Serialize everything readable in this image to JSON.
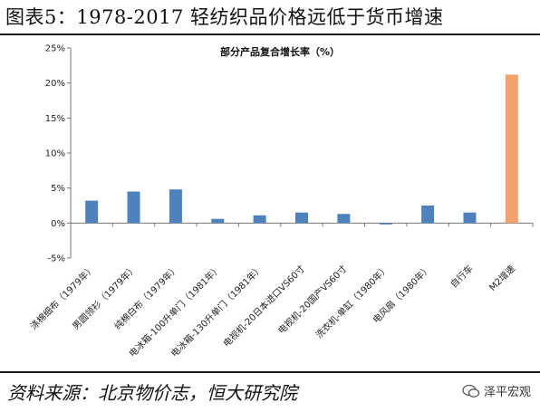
{
  "header": {
    "title": "图表5：1978-2017 轻纺织品价格远低于货币增速"
  },
  "source": {
    "text": "资料来源：北京物价志，恒大研究院"
  },
  "watermark": {
    "text": "泽平宏观",
    "icon": "chat-bubble-icon"
  },
  "colors": {
    "bar": "#4f81bd",
    "bar_highlight": "#f4a26b",
    "axis": "#777777"
  },
  "chart_data": {
    "type": "bar",
    "title": "部分产品复合增长率（%）",
    "categories": [
      "涤棉细布（1979年）",
      "男圆领衫（1979年）",
      "纯棉白布（1979年）",
      "电冰箱-100升单门（1981年）",
      "电冰箱-130升单门（1981年）",
      "电视机-20日本进口VS60寸",
      "电视机-20国产VS60寸",
      "洗衣机-单缸（1980年）",
      "电风扇（1980年）",
      "自行车",
      "M2增速"
    ],
    "values": [
      3.2,
      4.5,
      4.8,
      0.6,
      1.1,
      1.5,
      1.3,
      -0.2,
      2.5,
      1.5,
      21.2
    ],
    "highlight_index": 10,
    "yticks": [
      "25%",
      "20%",
      "15%",
      "10%",
      "5%",
      "0%",
      "-5%"
    ],
    "ytick_values": [
      25,
      20,
      15,
      10,
      5,
      0,
      -5
    ],
    "ylim": [
      -5,
      25
    ],
    "grid": false
  }
}
